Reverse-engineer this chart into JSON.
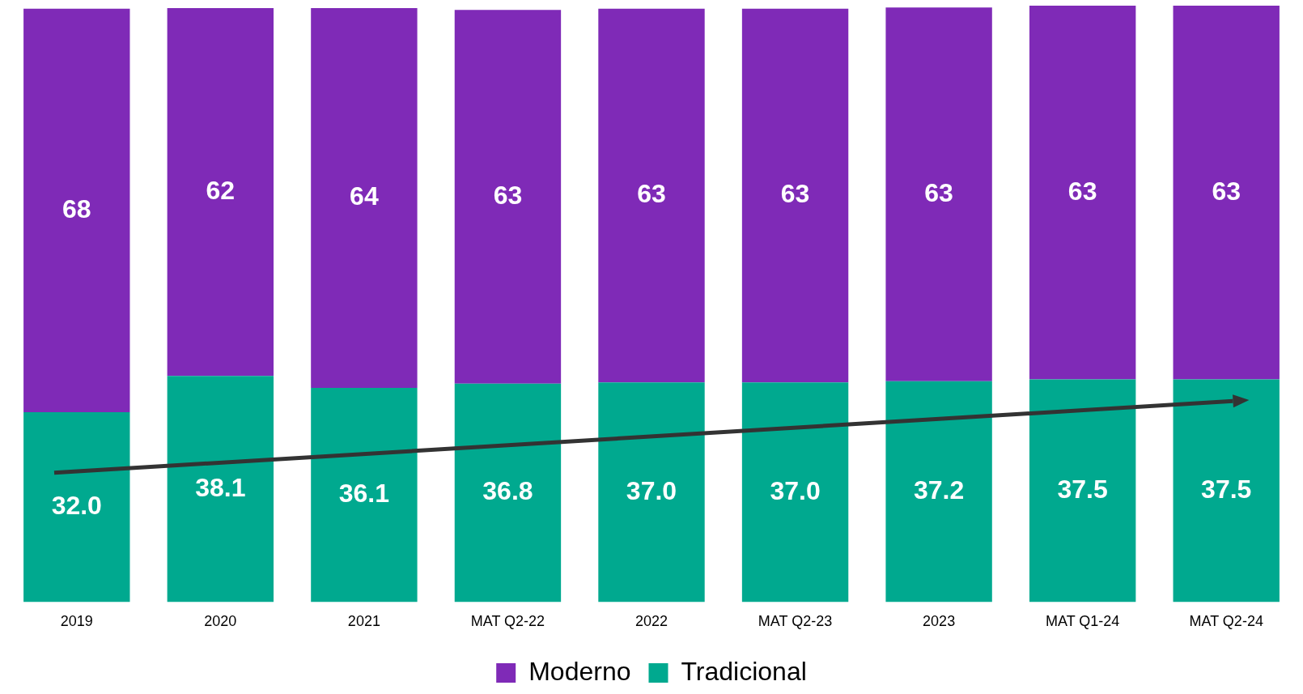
{
  "chart_data": {
    "type": "bar",
    "stacked": true,
    "categories": [
      "2019",
      "2020",
      "2021",
      "MAT Q2-22",
      "2022",
      "MAT Q2-23",
      "2023",
      "MAT Q1-24",
      "MAT Q2-24"
    ],
    "series": [
      {
        "name": "Tradicional",
        "color": "#00a98f",
        "values": [
          32.0,
          38.1,
          36.1,
          36.8,
          37.0,
          37.0,
          37.2,
          37.5,
          37.5
        ],
        "value_labels": [
          "32.0",
          "38.1",
          "36.1",
          "36.8",
          "37.0",
          "37.0",
          "37.2",
          "37.5",
          "37.5"
        ]
      },
      {
        "name": "Moderno",
        "color": "#7f2ab7",
        "values": [
          68,
          62,
          64,
          63,
          63,
          63,
          63,
          63,
          63
        ],
        "value_labels": [
          "68",
          "62",
          "64",
          "63",
          "63",
          "63",
          "63",
          "63",
          "63"
        ]
      }
    ],
    "legend": "bottom",
    "grid": false,
    "tick_labels": "x"
  }
}
